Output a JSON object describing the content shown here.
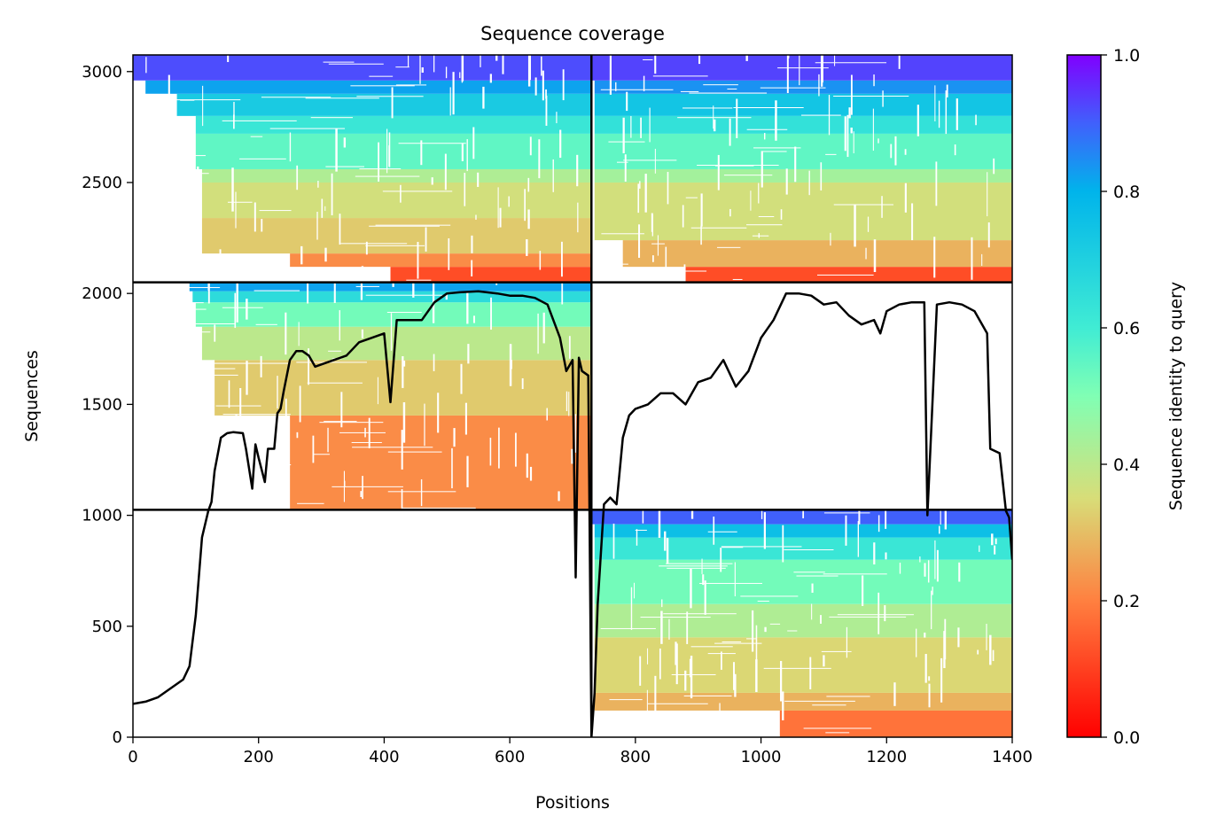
{
  "chart_data": {
    "type": "heatmap",
    "title": "Sequence coverage",
    "xlabel": "Positions",
    "ylabel": "Sequences",
    "xlim": [
      0,
      1400
    ],
    "ylim": [
      0,
      3075
    ],
    "xticks": [
      0,
      200,
      400,
      600,
      800,
      1000,
      1200,
      1400
    ],
    "yticks": [
      0,
      500,
      1000,
      1500,
      2000,
      2500,
      3000
    ],
    "grid": false,
    "colormap": "rainbow (red=0.0 to violet=1.0)",
    "colorbar": {
      "label": "Sequence identity to query",
      "min": 0.0,
      "max": 1.0,
      "ticks": [
        0.0,
        0.2,
        0.4,
        0.6,
        0.8,
        1.0
      ]
    },
    "chain_boundaries": {
      "positions": [
        730
      ],
      "sequence_blocks": [
        1025,
        2050
      ]
    },
    "blocks": [
      {
        "name": "block-1",
        "chain": "1",
        "x": [
          0,
          730
        ],
        "y": [
          2050,
          3075
        ],
        "populated": true
      },
      {
        "name": "block-2",
        "chain": "2",
        "x": [
          730,
          1400
        ],
        "y": [
          2050,
          3075
        ],
        "populated": true
      },
      {
        "name": "block-3",
        "chain": "1",
        "x": [
          0,
          730
        ],
        "y": [
          1025,
          2050
        ],
        "populated": true
      },
      {
        "name": "block-4",
        "chain": "2",
        "x": [
          730,
          1400
        ],
        "y": [
          1025,
          2050
        ],
        "populated": false
      },
      {
        "name": "block-5",
        "chain": "1",
        "x": [
          0,
          730
        ],
        "y": [
          0,
          1025
        ],
        "populated": false
      },
      {
        "name": "block-6",
        "chain": "2",
        "x": [
          730,
          1400
        ],
        "y": [
          0,
          1025
        ],
        "populated": true
      }
    ],
    "coverage_line": {
      "color": "#000000",
      "x": [
        0,
        20,
        40,
        60,
        80,
        90,
        100,
        110,
        120,
        125,
        130,
        140,
        150,
        160,
        175,
        180,
        190,
        195,
        200,
        210,
        215,
        225,
        230,
        235,
        240,
        250,
        260,
        270,
        280,
        290,
        300,
        320,
        340,
        360,
        380,
        400,
        410,
        420,
        440,
        460,
        480,
        500,
        520,
        550,
        580,
        600,
        620,
        640,
        660,
        680,
        690,
        700,
        705,
        710,
        715,
        720,
        725,
        730,
        735,
        740,
        750,
        760,
        770,
        780,
        790,
        800,
        820,
        840,
        860,
        880,
        900,
        920,
        940,
        960,
        980,
        1000,
        1020,
        1040,
        1060,
        1080,
        1100,
        1120,
        1140,
        1160,
        1180,
        1190,
        1200,
        1220,
        1240,
        1260,
        1265,
        1280,
        1300,
        1320,
        1340,
        1360,
        1365,
        1380,
        1390,
        1395,
        1400
      ],
      "y": [
        150,
        160,
        180,
        220,
        260,
        320,
        550,
        900,
        1020,
        1060,
        1200,
        1350,
        1370,
        1375,
        1370,
        1300,
        1120,
        1320,
        1260,
        1150,
        1300,
        1300,
        1460,
        1480,
        1560,
        1700,
        1740,
        1740,
        1720,
        1670,
        1680,
        1700,
        1720,
        1780,
        1800,
        1820,
        1510,
        1880,
        1880,
        1880,
        1960,
        2000,
        2005,
        2010,
        2000,
        1990,
        1990,
        1980,
        1950,
        1800,
        1650,
        1700,
        720,
        1710,
        1650,
        1640,
        1630,
        0,
        200,
        600,
        1050,
        1080,
        1050,
        1350,
        1450,
        1480,
        1500,
        1550,
        1550,
        1500,
        1600,
        1620,
        1700,
        1580,
        1650,
        1800,
        1880,
        2000,
        2000,
        1990,
        1950,
        1960,
        1900,
        1860,
        1880,
        1820,
        1920,
        1950,
        1960,
        1960,
        1000,
        1950,
        1960,
        1950,
        1920,
        1820,
        1300,
        1280,
        1020,
        990,
        800
      ]
    },
    "row_bands": [
      {
        "block": "block-1",
        "y": [
          2050,
          2120
        ],
        "x": [
          410,
          730
        ],
        "identity": 0.12
      },
      {
        "block": "block-1",
        "y": [
          2120,
          2180
        ],
        "x": [
          250,
          730
        ],
        "identity": 0.22
      },
      {
        "block": "block-1",
        "y": [
          2180,
          2340
        ],
        "x": [
          110,
          730
        ],
        "identity": 0.32
      },
      {
        "block": "block-1",
        "y": [
          2340,
          2500
        ],
        "x": [
          110,
          730
        ],
        "identity": 0.36
      },
      {
        "block": "block-1",
        "y": [
          2500,
          2560
        ],
        "x": [
          110,
          730
        ],
        "identity": 0.42
      },
      {
        "block": "block-1",
        "y": [
          2560,
          2720
        ],
        "x": [
          100,
          730
        ],
        "identity": 0.55
      },
      {
        "block": "block-1",
        "y": [
          2720,
          2800
        ],
        "x": [
          100,
          730
        ],
        "identity": 0.62
      },
      {
        "block": "block-1",
        "y": [
          2800,
          2900
        ],
        "x": [
          70,
          730
        ],
        "identity": 0.72
      },
      {
        "block": "block-1",
        "y": [
          2900,
          2960
        ],
        "x": [
          20,
          730
        ],
        "identity": 0.82
      },
      {
        "block": "block-1",
        "y": [
          2960,
          3075
        ],
        "x": [
          0,
          730
        ],
        "identity": 0.92
      },
      {
        "block": "block-2",
        "y": [
          2050,
          2120
        ],
        "x": [
          880,
          1400
        ],
        "identity": 0.12
      },
      {
        "block": "block-2",
        "y": [
          2120,
          2240
        ],
        "x": [
          780,
          1400
        ],
        "identity": 0.28
      },
      {
        "block": "block-2",
        "y": [
          2240,
          2500
        ],
        "x": [
          735,
          1400
        ],
        "identity": 0.36
      },
      {
        "block": "block-2",
        "y": [
          2500,
          2560
        ],
        "x": [
          735,
          1400
        ],
        "identity": 0.44
      },
      {
        "block": "block-2",
        "y": [
          2560,
          2720
        ],
        "x": [
          735,
          1400
        ],
        "identity": 0.55
      },
      {
        "block": "block-2",
        "y": [
          2720,
          2800
        ],
        "x": [
          735,
          1400
        ],
        "identity": 0.64
      },
      {
        "block": "block-2",
        "y": [
          2800,
          2900
        ],
        "x": [
          735,
          1400
        ],
        "identity": 0.74
      },
      {
        "block": "block-2",
        "y": [
          2900,
          2960
        ],
        "x": [
          735,
          1400
        ],
        "identity": 0.84
      },
      {
        "block": "block-2",
        "y": [
          2960,
          3075
        ],
        "x": [
          730,
          1400
        ],
        "identity": 0.93
      },
      {
        "block": "block-3",
        "y": [
          1025,
          1450
        ],
        "x": [
          250,
          730
        ],
        "identity": 0.22
      },
      {
        "block": "block-3",
        "y": [
          1450,
          1700
        ],
        "x": [
          130,
          730
        ],
        "identity": 0.32
      },
      {
        "block": "block-3",
        "y": [
          1700,
          1850
        ],
        "x": [
          110,
          730
        ],
        "identity": 0.4
      },
      {
        "block": "block-3",
        "y": [
          1850,
          1960
        ],
        "x": [
          100,
          730
        ],
        "identity": 0.52
      },
      {
        "block": "block-3",
        "y": [
          1960,
          2010
        ],
        "x": [
          95,
          730
        ],
        "identity": 0.66
      },
      {
        "block": "block-3",
        "y": [
          2010,
          2050
        ],
        "x": [
          90,
          730
        ],
        "identity": 0.82
      },
      {
        "block": "block-6",
        "y": [
          0,
          120
        ],
        "x": [
          1030,
          1400
        ],
        "identity": 0.18
      },
      {
        "block": "block-6",
        "y": [
          120,
          200
        ],
        "x": [
          735,
          1400
        ],
        "identity": 0.28
      },
      {
        "block": "block-6",
        "y": [
          200,
          450
        ],
        "x": [
          735,
          1400
        ],
        "identity": 0.34
      },
      {
        "block": "block-6",
        "y": [
          450,
          600
        ],
        "x": [
          735,
          1400
        ],
        "identity": 0.42
      },
      {
        "block": "block-6",
        "y": [
          600,
          800
        ],
        "x": [
          735,
          1400
        ],
        "identity": 0.52
      },
      {
        "block": "block-6",
        "y": [
          800,
          900
        ],
        "x": [
          735,
          1400
        ],
        "identity": 0.62
      },
      {
        "block": "block-6",
        "y": [
          900,
          960
        ],
        "x": [
          735,
          1400
        ],
        "identity": 0.76
      },
      {
        "block": "block-6",
        "y": [
          960,
          1025
        ],
        "x": [
          730,
          1400
        ],
        "identity": 0.9
      }
    ]
  }
}
